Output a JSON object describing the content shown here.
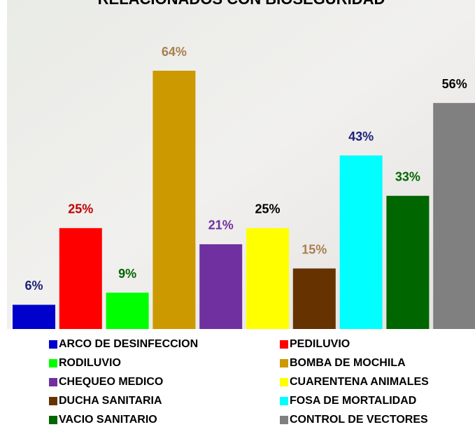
{
  "chart_data": {
    "type": "bar",
    "title": "RELACIONADOS CON BIOSEGURIDAD",
    "categories": [
      "ARCO DE DESINFECCION",
      "PEDILUVIO",
      "RODILUVIO",
      "BOMBA DE MOCHILA",
      "CHEQUEO MEDICO",
      "CUARENTENA ANIMALES",
      "DUCHA SANITARIA",
      "FOSA DE MORTALIDAD",
      "VACIO SANITARIO",
      "CONTROL DE VECTORES"
    ],
    "values": [
      6,
      25,
      9,
      64,
      21,
      25,
      15,
      43,
      33,
      56
    ],
    "value_labels": [
      "6%",
      "25%",
      "9%",
      "64%",
      "21%",
      "25%",
      "15%",
      "43%",
      "33%",
      "56%"
    ],
    "colors": [
      "#0000cc",
      "#ff0000",
      "#00ff00",
      "#cc9900",
      "#7030a0",
      "#ffff00",
      "#663300",
      "#00ffff",
      "#006600",
      "#808080"
    ],
    "label_colors": [
      "#1f1f7a",
      "#c00000",
      "#006600",
      "#a87f4f",
      "#7030a0",
      "#000000",
      "#a87f4f",
      "#1f1f7a",
      "#006600",
      "#000000"
    ],
    "legend": "bottom"
  }
}
